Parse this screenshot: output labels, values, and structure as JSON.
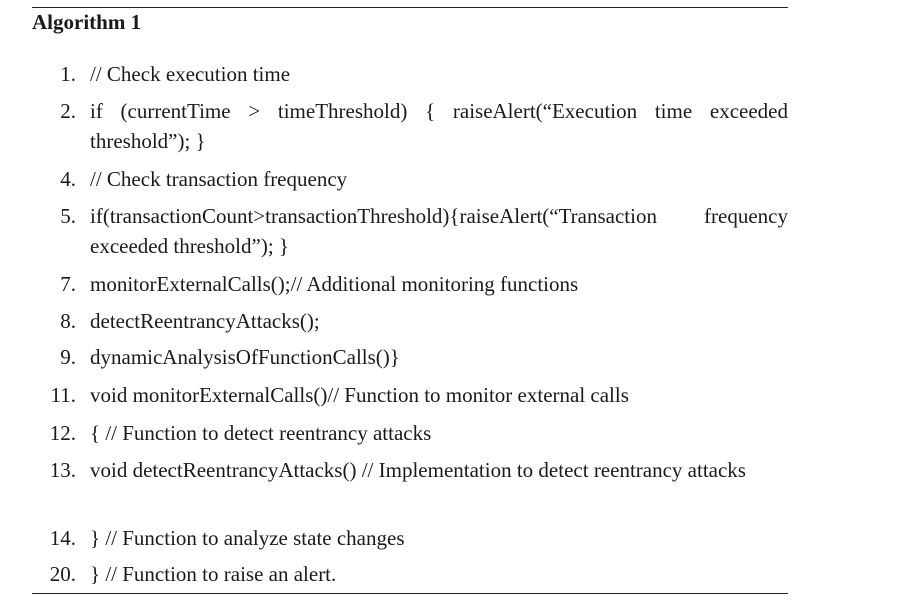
{
  "algorithm": {
    "title": "Algorithm 1",
    "lines": [
      {
        "number": "1.",
        "text": "// Check execution time"
      },
      {
        "number": "2.",
        "text": "if (currentTime > timeThreshold) { raiseAlert(“Execution time exceeded threshold”); }"
      },
      {
        "number": "4.",
        "text": "// Check transaction frequency"
      },
      {
        "number": "5.",
        "text": "if(transactionCount>transactionThreshold){raiseAlert(“Transaction frequency exceeded threshold”); }"
      },
      {
        "number": "7.",
        "text": "monitorExternalCalls();// Additional monitoring functions"
      },
      {
        "number": "8.",
        "text": "detectReentrancyAttacks();"
      },
      {
        "number": "9.",
        "text": "dynamicAnalysisOfFunctionCalls()}"
      },
      {
        "number": "11.",
        "text": "void monitorExternalCalls()// Function to monitor external calls"
      },
      {
        "number": "12.",
        "text": "{ // Function to detect reentrancy attacks"
      },
      {
        "number": "13.",
        "text": "void detectReentrancyAttacks() // Implementation to detect reentrancy attacks"
      },
      {
        "number": "14.",
        "text": "} // Function to analyze state changes"
      },
      {
        "number": "20.",
        "text": "} // Function to raise an alert."
      }
    ]
  }
}
